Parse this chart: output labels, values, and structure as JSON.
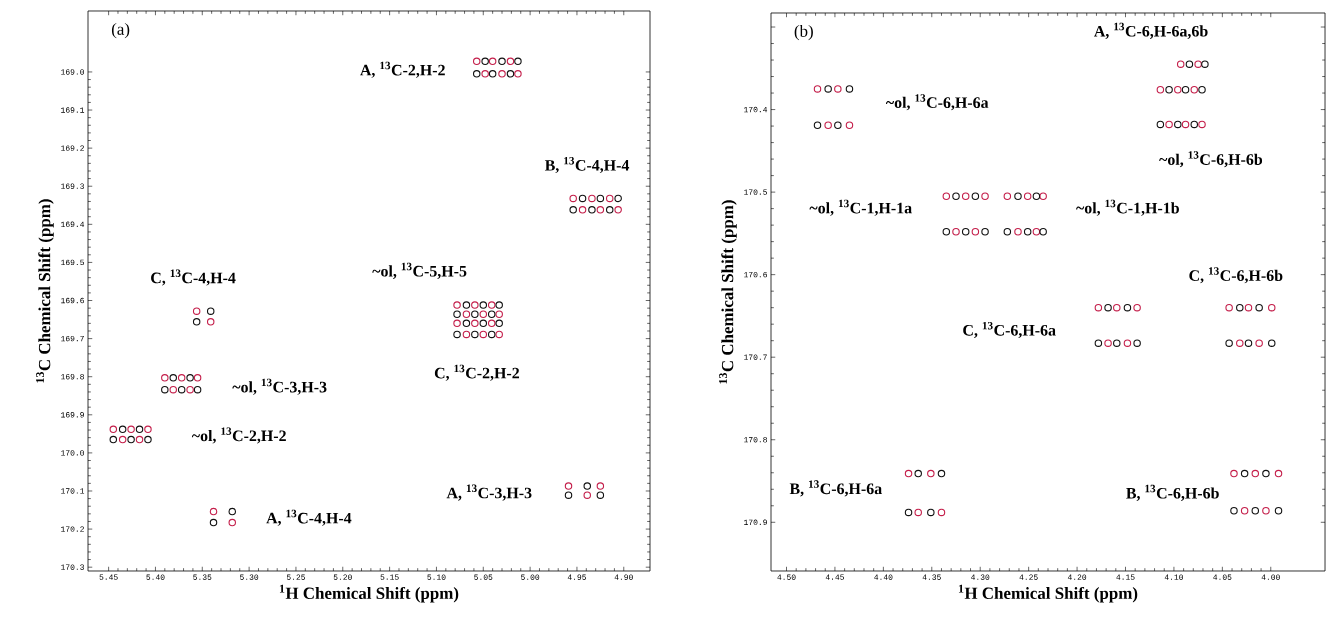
{
  "chart_data": [
    {
      "type": "scatter",
      "xlabel": "$^{1}$H Chemical Shift (ppm)",
      "ylabel": "$^{13}$C Chemical Shift (ppm)",
      "marker": "circle",
      "xlim": [
        5.472,
        4.872
      ],
      "ylim": [
        170.31,
        168.84
      ],
      "xticks": [
        {
          "value": 5.45,
          "label": "5.45"
        },
        {
          "value": 5.4,
          "label": "5.40"
        },
        {
          "value": 5.35,
          "label": "5.35"
        },
        {
          "value": 5.3,
          "label": "5.30"
        },
        {
          "value": 5.25,
          "label": "5.25"
        },
        {
          "value": 5.2,
          "label": "5.20"
        },
        {
          "value": 5.15,
          "label": "5.15"
        },
        {
          "value": 5.1,
          "label": "5.10"
        },
        {
          "value": 5.05,
          "label": "5.05"
        },
        {
          "value": 5.0,
          "label": "5.00"
        },
        {
          "value": 4.95,
          "label": "4.95"
        },
        {
          "value": 4.9,
          "label": "4.90"
        }
      ],
      "yticks": [
        {
          "value": 169.0,
          "label": "169.0"
        },
        {
          "value": 169.1,
          "label": "169.1"
        },
        {
          "value": 169.2,
          "label": "169.2"
        },
        {
          "value": 169.3,
          "label": "169.3"
        },
        {
          "value": 169.4,
          "label": "169.4"
        },
        {
          "value": 169.5,
          "label": "169.5"
        },
        {
          "value": 169.6,
          "label": "169.6"
        },
        {
          "value": 169.7,
          "label": "169.7"
        },
        {
          "value": 169.8,
          "label": "169.8"
        },
        {
          "value": 169.9,
          "label": "169.9"
        },
        {
          "value": 170.0,
          "label": "170.0"
        },
        {
          "value": 170.1,
          "label": "170.1"
        },
        {
          "value": 170.2,
          "label": "170.2"
        },
        {
          "value": 170.3,
          "label": "170.3"
        }
      ],
      "series": [
        {
          "color": "#c41e4a",
          "x": [
            5.057,
            5.04,
            5.021,
            5.048,
            5.03,
            5.013,
            4.954,
            4.934,
            4.915,
            4.944,
            4.925,
            4.906,
            5.356,
            5.341,
            5.078,
            5.059,
            5.041,
            5.068,
            5.05,
            5.033,
            5.078,
            5.059,
            5.041,
            5.068,
            5.05,
            5.033,
            5.39,
            5.372,
            5.355,
            5.381,
            5.363,
            5.445,
            5.426,
            5.408,
            5.435,
            5.417,
            5.338,
            5.318,
            4.959,
            4.925,
            4.939
          ],
          "values": [
            168.972,
            168.972,
            168.972,
            169.005,
            169.005,
            169.005,
            169.332,
            169.332,
            169.332,
            169.362,
            169.362,
            169.362,
            169.628,
            169.656,
            169.612,
            169.612,
            169.612,
            169.636,
            169.636,
            169.636,
            169.66,
            169.66,
            169.66,
            169.689,
            169.689,
            169.689,
            169.803,
            169.803,
            169.803,
            169.834,
            169.834,
            169.938,
            169.938,
            169.938,
            169.965,
            169.965,
            170.154,
            170.183,
            170.087,
            170.087,
            170.111
          ]
        },
        {
          "color": "#111111",
          "x": [
            5.048,
            5.03,
            5.013,
            5.057,
            5.04,
            5.021,
            4.944,
            4.925,
            4.906,
            4.954,
            4.934,
            4.915,
            5.341,
            5.356,
            5.068,
            5.05,
            5.033,
            5.078,
            5.059,
            5.041,
            5.068,
            5.05,
            5.033,
            5.078,
            5.059,
            5.041,
            5.381,
            5.363,
            5.39,
            5.372,
            5.355,
            5.435,
            5.417,
            5.445,
            5.426,
            5.408,
            5.318,
            5.338,
            4.939,
            4.959,
            4.925
          ],
          "values": [
            168.972,
            168.972,
            168.972,
            169.005,
            169.005,
            169.005,
            169.332,
            169.332,
            169.332,
            169.362,
            169.362,
            169.362,
            169.628,
            169.656,
            169.612,
            169.612,
            169.612,
            169.636,
            169.636,
            169.636,
            169.66,
            169.66,
            169.66,
            169.689,
            169.689,
            169.689,
            169.803,
            169.803,
            169.834,
            169.834,
            169.834,
            169.938,
            169.938,
            169.965,
            169.965,
            169.965,
            170.154,
            170.183,
            170.087,
            170.111,
            170.111
          ]
        }
      ],
      "annotations": [
        "(a)",
        "A, $^{13}$C-2,H-2",
        "B, $^{13}$C-4,H-4",
        "C, $^{13}$C-4,H-4",
        "~ol, $^{13}$C-5,H-5",
        "C, $^{13}$C-2,H-2",
        "~ol, $^{13}$C-3,H-3",
        "~ol, $^{13}$C-2,H-2",
        "A, $^{13}$C-4,H-4",
        "A, $^{13}$C-3,H-3"
      ]
    },
    {
      "type": "scatter",
      "xlabel": "$^{1}$H Chemical Shift (ppm)",
      "ylabel": "$^{13}$C Chemical Shift (ppm)",
      "marker": "circle",
      "xlim": [
        4.516,
        3.944
      ],
      "ylim": [
        170.959,
        170.283
      ],
      "xticks": [
        {
          "value": 4.5,
          "label": "4.50"
        },
        {
          "value": 4.45,
          "label": "4.45"
        },
        {
          "value": 4.4,
          "label": "4.40"
        },
        {
          "value": 4.35,
          "label": "4.35"
        },
        {
          "value": 4.3,
          "label": "4.30"
        },
        {
          "value": 4.25,
          "label": "4.25"
        },
        {
          "value": 4.2,
          "label": "4.20"
        },
        {
          "value": 4.15,
          "label": "4.15"
        },
        {
          "value": 4.1,
          "label": "4.10"
        },
        {
          "value": 4.05,
          "label": "4.05"
        },
        {
          "value": 4.0,
          "label": "4.00"
        }
      ],
      "yticks": [
        {
          "value": 170.3,
          "label": null
        },
        {
          "value": 170.4,
          "label": "170.4"
        },
        {
          "value": 170.5,
          "label": "170.5"
        },
        {
          "value": 170.6,
          "label": "170.6"
        },
        {
          "value": 170.7,
          "label": "170.7"
        },
        {
          "value": 170.8,
          "label": "170.8"
        },
        {
          "value": 170.9,
          "label": "170.9"
        }
      ],
      "series": [
        {
          "color": "#c41e4a",
          "x": [
            4.468,
            4.447,
            4.457,
            4.435,
            4.093,
            4.075,
            4.114,
            4.096,
            4.079,
            4.105,
            4.088,
            4.071,
            4.335,
            4.315,
            4.295,
            4.325,
            4.305,
            4.272,
            4.251,
            4.235,
            4.261,
            4.242,
            4.178,
            4.159,
            4.138,
            4.168,
            4.148,
            4.043,
            4.023,
            3.999,
            4.032,
            4.012,
            4.374,
            4.351,
            4.364,
            4.34,
            4.038,
            4.016,
            3.992,
            4.027,
            4.005
          ],
          "values": [
            170.375,
            170.375,
            170.419,
            170.419,
            170.345,
            170.345,
            170.376,
            170.376,
            170.376,
            170.418,
            170.418,
            170.418,
            170.505,
            170.505,
            170.505,
            170.548,
            170.548,
            170.505,
            170.505,
            170.505,
            170.548,
            170.548,
            170.64,
            170.64,
            170.64,
            170.683,
            170.683,
            170.64,
            170.64,
            170.64,
            170.683,
            170.683,
            170.841,
            170.841,
            170.888,
            170.888,
            170.841,
            170.841,
            170.841,
            170.886,
            170.886
          ]
        },
        {
          "color": "#111111",
          "x": [
            4.457,
            4.435,
            4.468,
            4.447,
            4.084,
            4.068,
            4.105,
            4.088,
            4.071,
            4.114,
            4.096,
            4.079,
            4.325,
            4.305,
            4.335,
            4.315,
            4.295,
            4.261,
            4.242,
            4.272,
            4.251,
            4.235,
            4.168,
            4.148,
            4.178,
            4.159,
            4.138,
            4.032,
            4.012,
            4.043,
            4.023,
            3.999,
            4.364,
            4.34,
            4.374,
            4.351,
            4.027,
            4.005,
            4.038,
            4.016,
            3.992
          ],
          "values": [
            170.375,
            170.375,
            170.419,
            170.419,
            170.345,
            170.345,
            170.376,
            170.376,
            170.376,
            170.418,
            170.418,
            170.418,
            170.505,
            170.505,
            170.548,
            170.548,
            170.548,
            170.505,
            170.505,
            170.548,
            170.548,
            170.548,
            170.64,
            170.64,
            170.683,
            170.683,
            170.683,
            170.64,
            170.64,
            170.683,
            170.683,
            170.683,
            170.841,
            170.841,
            170.888,
            170.888,
            170.841,
            170.841,
            170.886,
            170.886,
            170.886
          ]
        }
      ],
      "annotations": [
        "(b)",
        "~ol, $^{13}$C-6,H-6a",
        "A, $^{13}$C-6,H-6a,6b",
        "~ol, $^{13}$C-6,H-6b",
        "~ol, $^{13}$C-1,H-1a",
        "~ol, $^{13}$C-1,H-1b",
        "C, $^{13}$C-6,H-6b",
        "C, $^{13}$C-6,H-6a",
        "B, $^{13}$C-6,H-6a",
        "B, $^{13}$C-6,H-6b"
      ]
    }
  ]
}
